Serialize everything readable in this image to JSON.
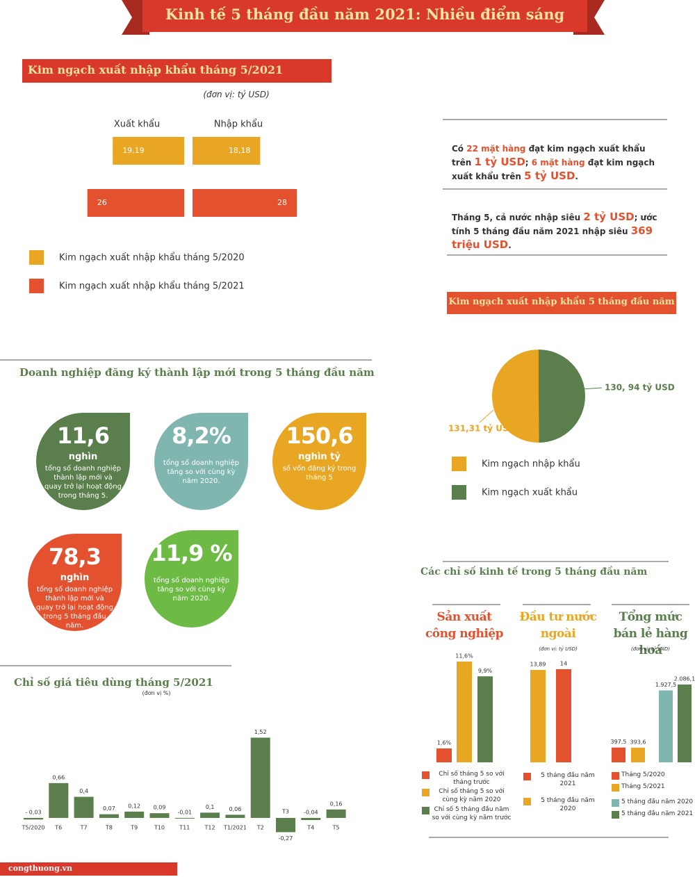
{
  "title": "Kinh tế 5 tháng đầu năm 2021: Nhiều điểm sáng",
  "source": "congthuong.vn",
  "notes": [
    [
      {
        "text": "Có "
      },
      {
        "text": "22 mặt hàng",
        "highlight": true
      },
      {
        "text": " đạt kim ngạch xuất khẩu trên "
      },
      {
        "text": "1 tỷ USD",
        "highlight": true,
        "big": true
      },
      {
        "text": "; "
      },
      {
        "text": "6 mặt hàng",
        "highlight": true
      },
      {
        "text": " đạt kim ngạch xuất khẩu trên "
      },
      {
        "text": "5 tỷ USD",
        "highlight": true,
        "big": true
      },
      {
        "text": "."
      }
    ],
    [
      {
        "text": "Tháng 5, cả nước nhập siêu "
      },
      {
        "text": "2 tỷ USD",
        "highlight": true,
        "big": true
      },
      {
        "text": "; ước tính 5 tháng đầu năm 2021 nhập siêu "
      },
      {
        "text": "369 triệu USD",
        "highlight": true,
        "big": true
      },
      {
        "text": "."
      }
    ]
  ],
  "enterprise": {
    "title": "Doanh nghiệp đăng ký thành lập mới trong 5 tháng đầu năm",
    "items": [
      {
        "value": "11,6",
        "unit": "nghìn",
        "text": "tổng số doanh nghiệp thành lập mới và quay trở lại hoạt động trong tháng 5.",
        "color": "#5a7f4d"
      },
      {
        "value": "8,2%",
        "text": "tổng số doanh nghiệp tăng so với cùng kỳ năm 2020.",
        "color": "#7fb6b0"
      },
      {
        "value": "150,6",
        "unit": "nghìn tỷ",
        "text": "số vốn đăng ký trong tháng 5",
        "color": "#e8a623"
      },
      {
        "value": "78,3",
        "unit": "nghìn",
        "text": "tổng số doanh nghiệp thành lập mới và quay trở lại hoạt động trong 5 tháng đầu năm.",
        "color": "#e4512f"
      },
      {
        "value": "11,9 %",
        "text": "tổng số doanh nghiệp tăng so với cùng kỳ năm 2020.",
        "color": "#6dbb45"
      }
    ]
  },
  "indicators_title": "Các chỉ số kinh tế trong 5 tháng đầu năm",
  "chart_data": [
    {
      "type": "bar",
      "title": "Kim ngạch xuất nhập khẩu tháng 5/2021",
      "subtitle": "(đơn vị: tỷ USD)",
      "categories": [
        "Xuất khẩu",
        "Nhập khẩu"
      ],
      "series": [
        {
          "name": "Kim ngạch xuất nhập khẩu tháng 5/2020",
          "color": "#e8a623",
          "values": [
            19.19,
            18.18
          ],
          "value_labels": [
            "19,19",
            "18,18"
          ]
        },
        {
          "name": "Kim ngạch xuất nhập khẩu tháng 5/2021",
          "color": "#e4512f",
          "values": [
            26,
            28
          ]
        }
      ]
    },
    {
      "type": "pie",
      "title": "Kim ngạch xuất nhập khẩu 5 tháng đầu năm",
      "categories": [
        "Kim ngạch nhập khẩu",
        "Kim ngạch xuất khẩu"
      ],
      "values": [
        131.31,
        130.94
      ],
      "value_labels": [
        "131,31 tỷ USD",
        "130, 94 tỷ USD"
      ],
      "colors": [
        "#e8a623",
        "#5a7f4d"
      ]
    },
    {
      "type": "bar",
      "title": "Chỉ số giá tiêu dùng tháng 5/2021",
      "subtitle": "(đơn vị %)",
      "categories": [
        "T5/2020",
        "T6",
        "T7",
        "T8",
        "T9",
        "T10",
        "T11",
        "T12",
        "T1/2021",
        "T2",
        "T3",
        "T4",
        "T5"
      ],
      "values": [
        -0.03,
        0.66,
        0.4,
        0.07,
        0.12,
        0.09,
        -0.01,
        0.1,
        0.06,
        1.52,
        -0.27,
        -0.04,
        0.16
      ],
      "value_labels": [
        "- 0,03",
        "0,66",
        "0,4",
        "0,07",
        "0,12",
        "0,09",
        "-0,01",
        "0,1",
        "0,06",
        "1,52",
        "-0,27",
        "-0,04",
        "0,16"
      ],
      "color": "#5a7f4d"
    },
    {
      "type": "bar",
      "title": "Sản xuất công nghiệp",
      "categories": [
        "Chỉ số tháng 5 so với tháng trước",
        "Chỉ số tháng 5 so với cùng kỳ năm 2020",
        "Chỉ số 5 tháng đầu năm so với cùng kỳ năm trước"
      ],
      "values": [
        1.6,
        11.6,
        9.9
      ],
      "value_labels": [
        "1,6%",
        "11,6%",
        "9,9%"
      ],
      "colors": [
        "#e4512f",
        "#e8a623",
        "#5a7f4d"
      ]
    },
    {
      "type": "bar",
      "title": "Đầu tư nước ngoài",
      "subtitle": "(đơn vị: tỷ USD)",
      "categories": [
        "5 tháng đầu năm 2021",
        "5 tháng đầu năm 2020"
      ],
      "values": [
        14,
        13.89
      ],
      "value_labels": [
        "14",
        "13,89"
      ],
      "colors": [
        "#e4512f",
        "#e8a623"
      ]
    },
    {
      "type": "bar",
      "title": "Tổng mức bán lẻ hàng hoá",
      "subtitle": "(đơn vị: tỷ VND)",
      "categories": [
        "Tháng 5/2020",
        "Tháng 5/2021",
        "5 tháng đầu năm 2020",
        "5 tháng đầu năm 2021"
      ],
      "values": [
        397.5,
        393.6,
        1927.5,
        2086.1
      ],
      "value_labels": [
        "397,5",
        "393,6",
        "1.927,5",
        "2.086,1"
      ],
      "colors": [
        "#e4512f",
        "#e8a623",
        "#7fb6b0",
        "#5a7f4d"
      ]
    }
  ]
}
